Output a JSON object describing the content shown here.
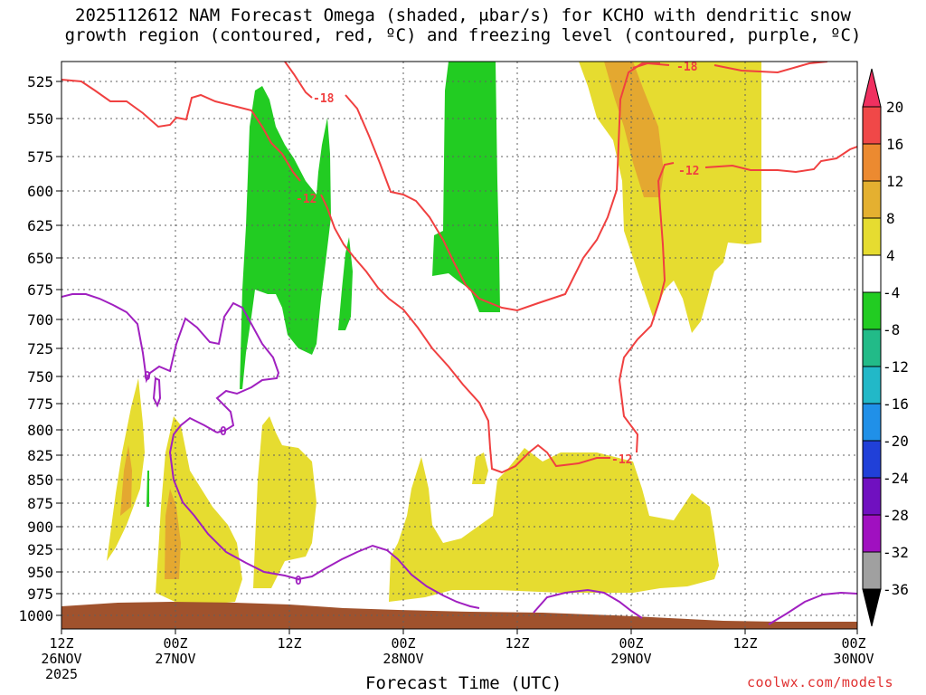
{
  "title_line1": "2025112612 NAM Forecast Omega (shaded, μbar/s) for KCHO with dendritic snow",
  "title_line2": "growth region (contoured, red, ºC) and freezing level (contoured, purple, ºC)",
  "credit": "coolwx.com/models",
  "chart_data": {
    "type": "time-height cross section",
    "xlabel": "Forecast Time (UTC)",
    "ylabel": "",
    "y_axis": {
      "reversed": true,
      "ticks": [
        525,
        550,
        575,
        600,
        625,
        650,
        675,
        700,
        725,
        750,
        775,
        800,
        825,
        850,
        875,
        900,
        925,
        950,
        975,
        1000
      ]
    },
    "x_axis": {
      "range_hours": [
        0,
        84
      ],
      "ticks": [
        {
          "hour": 0,
          "top": "12Z",
          "mid": "26NOV",
          "bottom": "2025"
        },
        {
          "hour": 12,
          "top": "00Z",
          "mid": "27NOV",
          "bottom": ""
        },
        {
          "hour": 24,
          "top": "12Z",
          "mid": "",
          "bottom": ""
        },
        {
          "hour": 36,
          "top": "00Z",
          "mid": "28NOV",
          "bottom": ""
        },
        {
          "hour": 48,
          "top": "12Z",
          "mid": "",
          "bottom": ""
        },
        {
          "hour": 60,
          "top": "00Z",
          "mid": "29NOV",
          "bottom": ""
        },
        {
          "hour": 72,
          "top": "12Z",
          "mid": "",
          "bottom": ""
        },
        {
          "hour": 84,
          "top": "00Z",
          "mid": "30NOV",
          "bottom": ""
        }
      ]
    },
    "grid": true,
    "colorbar": {
      "levels": [
        20,
        16,
        12,
        8,
        4,
        -4,
        -8,
        -12,
        -16,
        -20,
        -24,
        -28,
        -32,
        -36
      ],
      "colors": [
        "#f03060",
        "#f04848",
        "#ec8a30",
        "#e4b030",
        "#e6dc30",
        "#ffffff",
        "#22cc22",
        "#22bb88",
        "#22b8c8",
        "#2090e8",
        "#2040d8",
        "#7010c0",
        "#a010c0",
        "#a0a0a0",
        "#000000"
      ]
    },
    "contour_labels": [
      {
        "field": "temperature",
        "color": "#f04040",
        "value": "-18"
      },
      {
        "field": "temperature",
        "color": "#f04040",
        "value": "-12"
      },
      {
        "field": "temperature",
        "color": "#f04040",
        "value": "-18"
      },
      {
        "field": "temperature",
        "color": "#f04040",
        "value": "-12"
      },
      {
        "field": "temperature",
        "color": "#f04040",
        "value": "-12"
      },
      {
        "field": "freezing",
        "color": "#a020c0",
        "value": "0"
      },
      {
        "field": "freezing",
        "color": "#a020c0",
        "value": "0"
      },
      {
        "field": "freezing",
        "color": "#a020c0",
        "value": "0"
      }
    ]
  }
}
